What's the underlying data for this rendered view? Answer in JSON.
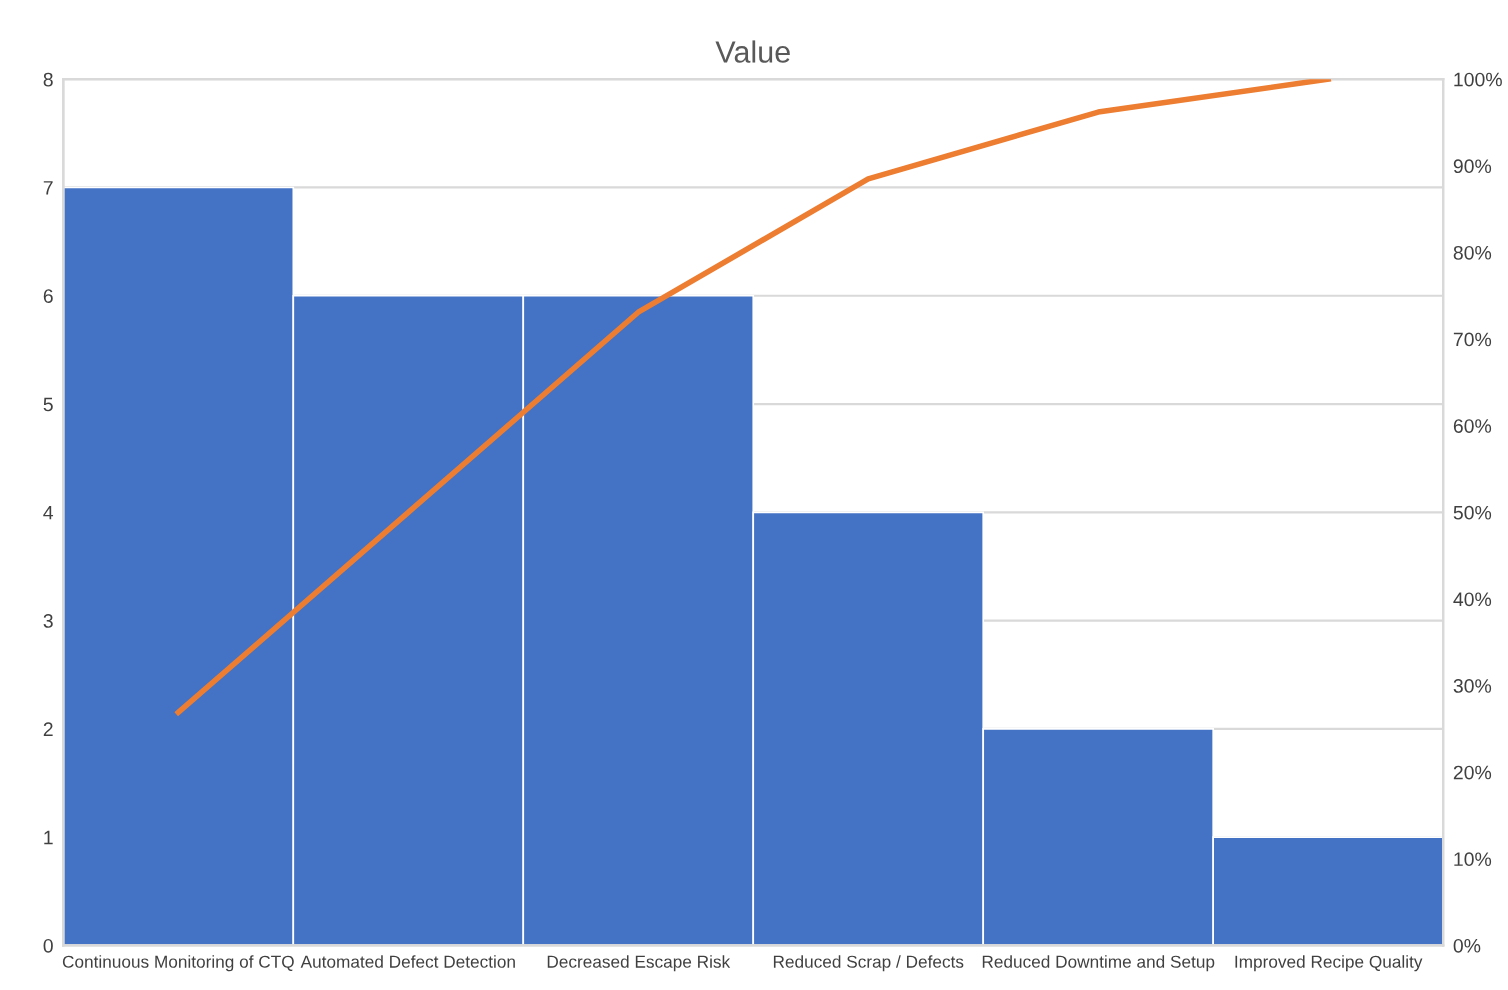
{
  "chart_data": {
    "type": "bar",
    "title": "Value",
    "categories": [
      "Continuous Monitoring of CTQ",
      "Automated Defect Detection",
      "Decreased Escape Risk",
      "Reduced Scrap / Defects",
      "Reduced Downtime and Setup",
      "Improved Recipe Quality"
    ],
    "series": [
      {
        "color": "#4472c4",
        "values": [
          7,
          6,
          6,
          4,
          2,
          1
        ]
      },
      {
        "type": "line",
        "axis": "y2",
        "color": "#ed7d31",
        "values": [
          26.9,
          50,
          73.1,
          88.5,
          96.2,
          100
        ]
      }
    ],
    "ylim": [
      0,
      8
    ],
    "yticks": [
      0,
      1,
      2,
      3,
      4,
      5,
      6,
      7,
      8
    ],
    "y2lim": [
      0,
      100
    ],
    "y2ticks": [
      {
        "value": 0,
        "label": "0%"
      },
      {
        "value": 10,
        "label": "10%"
      },
      {
        "value": 20,
        "label": "20%"
      },
      {
        "value": 30,
        "label": "30%"
      },
      {
        "value": 40,
        "label": "40%"
      },
      {
        "value": 50,
        "label": "50%"
      },
      {
        "value": 60,
        "label": "60%"
      },
      {
        "value": 70,
        "label": "70%"
      },
      {
        "value": 80,
        "label": "80%"
      },
      {
        "value": 90,
        "label": "90%"
      },
      {
        "value": 100,
        "label": "100%"
      }
    ],
    "grid": "y",
    "legend": false,
    "marker": "none",
    "line_style": "solid"
  }
}
